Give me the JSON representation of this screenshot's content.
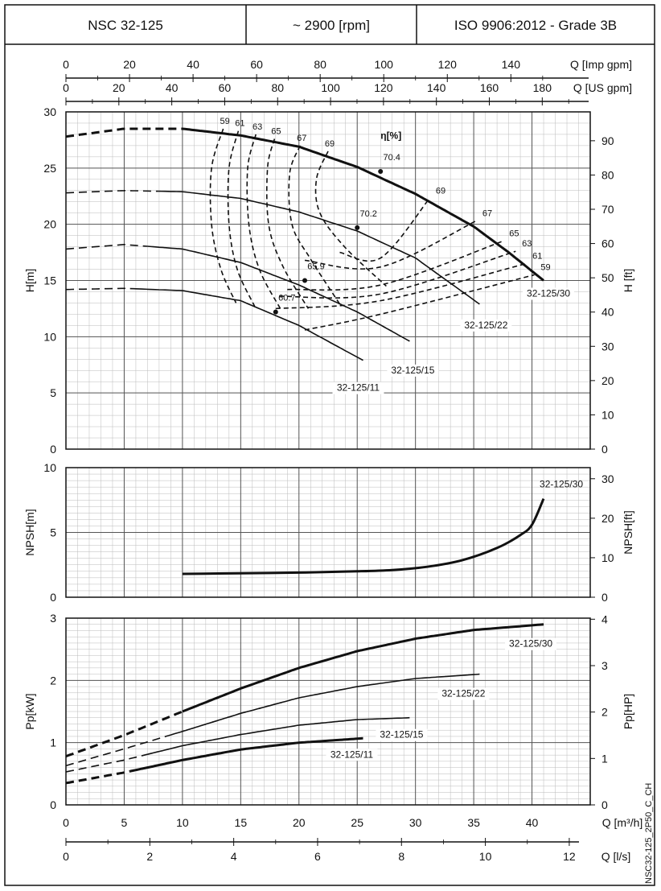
{
  "header": {
    "model": "NSC 32-125",
    "speed": "~ 2900 [rpm]",
    "standard": "ISO 9906:2012 - Grade 3B"
  },
  "side_code": "NSC32-125_2P50_C_CH",
  "chart_data": [
    {
      "type": "line",
      "panel": "head",
      "x_axis_label": "Q [m³/h]",
      "top_axes": [
        {
          "label": "Q [Imp gpm]",
          "ticks": [
            "0",
            "20",
            "40",
            "60",
            "80",
            "100",
            "120",
            "140"
          ],
          "tick_values": [
            0,
            20,
            40,
            60,
            80,
            100,
            120,
            140
          ],
          "factor_per_m3h": 3.666
        },
        {
          "label": "Q [US gpm]",
          "ticks": [
            "0",
            "20",
            "40",
            "60",
            "80",
            "100",
            "120",
            "140",
            "160",
            "180"
          ],
          "tick_values": [
            0,
            20,
            40,
            60,
            80,
            100,
            120,
            140,
            160,
            180
          ],
          "factor_per_m3h": 4.403
        }
      ],
      "xlim": [
        0,
        45
      ],
      "ylabel": "H[m]",
      "ylim": [
        0,
        30
      ],
      "y_ticks": [
        "0",
        "5",
        "10",
        "15",
        "20",
        "25",
        "30"
      ],
      "y_tick_values": [
        0,
        5,
        10,
        15,
        20,
        25,
        30
      ],
      "y2label": "H [ft]",
      "y2_ticks": [
        "0",
        "10",
        "20",
        "30",
        "40",
        "50",
        "60",
        "70",
        "80",
        "90"
      ],
      "y2_tick_values": [
        0,
        10,
        20,
        30,
        40,
        50,
        60,
        70,
        80,
        90
      ],
      "y2_factor": 3.2808,
      "grid": true,
      "eta_label": "η[%]",
      "series": [
        {
          "name": "32-125/30",
          "stroke": "heavy",
          "x": [
            0,
            5,
            10,
            15,
            20,
            25,
            30,
            35,
            38,
            41
          ],
          "y": [
            27.8,
            28.5,
            28.5,
            27.9,
            26.9,
            25.1,
            22.7,
            19.8,
            17.5,
            15.0
          ],
          "dashed_until": 10
        },
        {
          "name": "32-125/22",
          "stroke": "normal",
          "x": [
            0,
            5,
            10,
            15,
            20,
            25,
            30,
            35.5
          ],
          "y": [
            22.8,
            23.0,
            22.9,
            22.3,
            21.1,
            19.4,
            17.0,
            12.9
          ],
          "dashed_until": 8
        },
        {
          "name": "32-125/15",
          "stroke": "normal",
          "x": [
            0,
            5,
            10,
            15,
            20,
            25,
            29.5
          ],
          "y": [
            17.8,
            18.2,
            17.8,
            16.6,
            14.6,
            12.2,
            9.6
          ],
          "dashed_until": 7
        },
        {
          "name": "32-125/11",
          "stroke": "normal",
          "x": [
            0,
            5,
            10,
            15,
            20,
            25.5
          ],
          "y": [
            14.2,
            14.3,
            14.1,
            13.2,
            11.0,
            7.9
          ],
          "dashed_until": 5.5
        }
      ],
      "efficiency_contours": [
        {
          "label": "59",
          "x": [
            13.5,
            12.5,
            12.5,
            13.3,
            14.6
          ],
          "y": [
            28.5,
            25,
            20,
            16,
            13.0
          ]
        },
        {
          "label": "61",
          "x": [
            14.8,
            14,
            14,
            14.7,
            16.2
          ],
          "y": [
            28.3,
            25,
            20,
            16,
            12.7
          ]
        },
        {
          "label": "63",
          "x": [
            16.3,
            15.6,
            15.7,
            16.6,
            18.4
          ],
          "y": [
            28.0,
            25,
            20,
            16,
            12.5
          ]
        },
        {
          "label": "65",
          "x": [
            17.9,
            17.3,
            17.4,
            18.6,
            20.8
          ],
          "y": [
            27.6,
            25,
            20,
            16.3,
            12.5
          ]
        },
        {
          "label": "67",
          "x": [
            20.1,
            19.2,
            19.4,
            21,
            23.5
          ],
          "y": [
            27.0,
            24.5,
            20,
            16.9,
            12.9
          ]
        },
        {
          "label": "69",
          "x": [
            22.5,
            21.5,
            21.8,
            24,
            27.5
          ],
          "y": [
            26.5,
            24,
            21,
            17.9,
            14.5
          ]
        }
      ],
      "efficiency_right_branches": [
        {
          "label": "69",
          "x": [
            23.5,
            27,
            31.2
          ],
          "y": [
            17.5,
            17,
            22.3
          ]
        },
        {
          "label": "67",
          "x": [
            20.5,
            27,
            35.2
          ],
          "y": [
            16.8,
            16.2,
            20.3
          ]
        },
        {
          "label": "65",
          "x": [
            19,
            27,
            37.5
          ],
          "y": [
            14.2,
            14.6,
            18.5
          ]
        },
        {
          "label": "63",
          "x": [
            18.3,
            27,
            38.6
          ],
          "y": [
            13.6,
            13.8,
            17.6
          ]
        },
        {
          "label": "61",
          "x": [
            18.0,
            27,
            39.5
          ],
          "y": [
            12.5,
            13.2,
            16.5
          ]
        },
        {
          "label": "59",
          "x": [
            20.5,
            27,
            40.2
          ],
          "y": [
            10.6,
            12,
            15.5
          ]
        }
      ],
      "bep_points": [
        {
          "label": "70.4",
          "x": 27,
          "y": 24.7
        },
        {
          "label": "70.2",
          "x": 25,
          "y": 19.7
        },
        {
          "label": "65.9",
          "x": 20.5,
          "y": 15.0
        },
        {
          "label": "60.7",
          "x": 18,
          "y": 12.2
        }
      ]
    },
    {
      "type": "line",
      "panel": "npsh",
      "ylabel": "NPSH[m]",
      "ylim": [
        0,
        10
      ],
      "y_ticks": [
        "0",
        "5",
        "10"
      ],
      "y_tick_values": [
        0,
        5,
        10
      ],
      "y2label": "NPSH[ft]",
      "y2_ticks": [
        "0",
        "10",
        "20",
        "30"
      ],
      "y2_tick_values": [
        0,
        10,
        20,
        30
      ],
      "y2_factor": 3.2808,
      "xlim": [
        0,
        45
      ],
      "grid": true,
      "series": [
        {
          "name": "32-125/30",
          "x": [
            10,
            15,
            20,
            25,
            28,
            31,
            34,
            37,
            39,
            40,
            41
          ],
          "y": [
            1.8,
            1.85,
            1.9,
            2.0,
            2.1,
            2.35,
            2.85,
            3.8,
            4.8,
            5.6,
            7.6
          ]
        }
      ]
    },
    {
      "type": "line",
      "panel": "power",
      "ylabel": "Pp[kW]",
      "ylim": [
        0,
        3
      ],
      "y_ticks": [
        "0",
        "1",
        "2",
        "3"
      ],
      "y_tick_values": [
        0,
        1,
        2,
        3
      ],
      "y2label": "Pp[HP]",
      "y2_ticks": [
        "0",
        "1",
        "2",
        "3",
        "4"
      ],
      "y2_tick_values": [
        0,
        1,
        2,
        3,
        4
      ],
      "y2_factor": 1.341,
      "xlabel": "Q [m³/h]",
      "x_ticks": [
        "0",
        "5",
        "10",
        "15",
        "20",
        "25",
        "30",
        "35",
        "40"
      ],
      "x_tick_values": [
        0,
        5,
        10,
        15,
        20,
        25,
        30,
        35,
        40
      ],
      "xlim": [
        0,
        45
      ],
      "grid": true,
      "series": [
        {
          "name": "32-125/30",
          "stroke": "heavy",
          "x": [
            0,
            5,
            10,
            15,
            20,
            25,
            30,
            35,
            41
          ],
          "y": [
            0.78,
            1.12,
            1.5,
            1.87,
            2.2,
            2.47,
            2.67,
            2.81,
            2.9
          ],
          "dashed_until": 10
        },
        {
          "name": "32-125/22",
          "stroke": "normal",
          "x": [
            0,
            5,
            10,
            15,
            20,
            25,
            30,
            35.5
          ],
          "y": [
            0.63,
            0.9,
            1.18,
            1.47,
            1.72,
            1.9,
            2.03,
            2.1
          ],
          "dashed_until": 9
        },
        {
          "name": "32-125/15",
          "stroke": "normal",
          "x": [
            0,
            5,
            10,
            15,
            20,
            25,
            29.5
          ],
          "y": [
            0.53,
            0.72,
            0.95,
            1.13,
            1.28,
            1.37,
            1.4
          ],
          "dashed_until": 7
        },
        {
          "name": "32-125/11",
          "stroke": "heavy",
          "x": [
            0,
            5,
            10,
            15,
            20,
            25.5
          ],
          "y": [
            0.35,
            0.52,
            0.72,
            0.89,
            1.0,
            1.07
          ],
          "dashed_until": 5.5
        }
      ]
    },
    {
      "type": "axis",
      "panel": "bottom-ls",
      "xlabel": "Q [l/s]",
      "x_ticks": [
        "0",
        "2",
        "4",
        "6",
        "8",
        "10",
        "12"
      ],
      "x_tick_values": [
        0,
        2,
        4,
        6,
        8,
        10,
        12
      ],
      "factor_per_m3h": 0.27778
    }
  ]
}
